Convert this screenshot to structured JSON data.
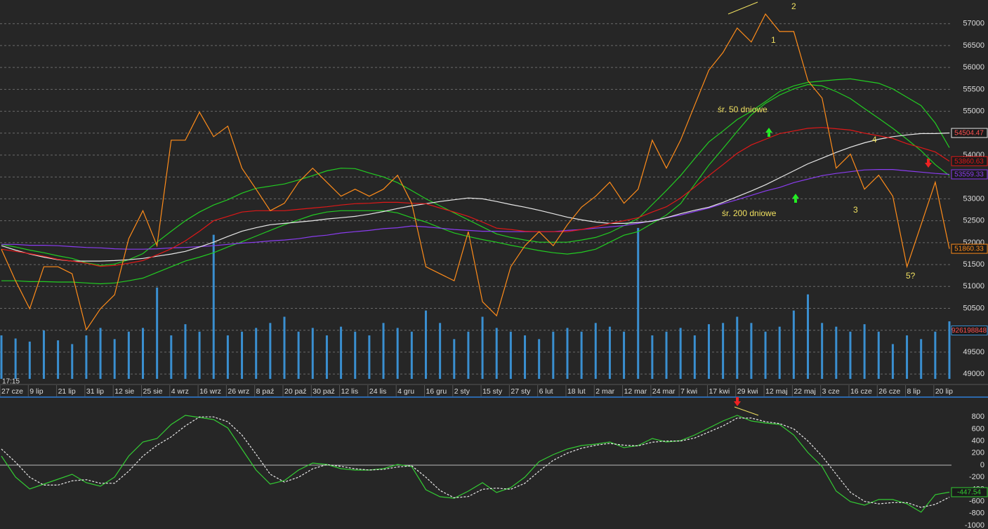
{
  "chart_data": [
    {
      "type": "line",
      "categories": [
        "27 cze",
        null,
        "9 lip",
        null,
        "21 lip",
        null,
        "31 lip",
        null,
        "12 sie",
        null,
        "25 sie",
        null,
        "4 wrz",
        null,
        "16 wrz",
        null,
        "26 wrz",
        null,
        "8 paź",
        null,
        "20 paź",
        null,
        "30 paź",
        null,
        "12 lis",
        null,
        "24 lis",
        null,
        "4 gru",
        null,
        "16 gru",
        null,
        "2 sty",
        null,
        "15 sty",
        null,
        "27 sty",
        null,
        "6 lut",
        null,
        "18 lut",
        null,
        "2 mar",
        null,
        "12 mar",
        null,
        "24 mar",
        null,
        "7 kwi",
        null,
        "17 kwi",
        null,
        "29 kwi",
        null,
        "12 maj",
        null,
        "22 maj",
        null,
        "3 cze",
        null,
        "16 cze",
        null,
        "26 cze",
        null,
        "8 lip",
        null,
        "20 lip",
        null
      ],
      "time_label": "17:15",
      "annotations": [
        "2",
        "1",
        "śr. 50 dniowe",
        "4",
        "3",
        "śr. 200 dniowe",
        "5?"
      ],
      "ylim": [
        48890,
        57540
      ],
      "yticks": [
        49000,
        49500,
        50000,
        50500,
        51000,
        51500,
        52000,
        52500,
        53000,
        53500,
        54000,
        54500,
        55000,
        55500,
        56000,
        56500,
        57000
      ],
      "y2lim": [
        0,
        6100000000
      ],
      "grid": true,
      "series": [
        {
          "type": "bar",
          "axis": "y2",
          "color": "#3a8fd0",
          "last_label": true,
          "values": [
            700000000,
            650000000,
            600000000,
            780000000,
            620000000,
            560000000,
            700000000,
            820000000,
            640000000,
            760000000,
            820000000,
            1470000000,
            700000000,
            880000000,
            760000000,
            2320000000,
            700000000,
            760000000,
            820000000,
            900000000,
            1000000000,
            760000000,
            820000000,
            700000000,
            840000000,
            760000000,
            700000000,
            900000000,
            820000000,
            760000000,
            1100000000,
            900000000,
            640000000,
            760000000,
            1000000000,
            820000000,
            760000000,
            700000000,
            640000000,
            760000000,
            820000000,
            760000000,
            900000000,
            840000000,
            760000000,
            2430000000,
            700000000,
            760000000,
            820000000,
            700000000,
            880000000,
            900000000,
            1000000000,
            900000000,
            760000000,
            840000000,
            1100000000,
            1360000000,
            900000000,
            840000000,
            760000000,
            880000000,
            760000000,
            560000000,
            700000000,
            640000000,
            760000000,
            926198848
          ]
        },
        {
          "color": "#22cc22",
          "values": [
            51130,
            51130,
            51110,
            51110,
            51100,
            51100,
            51080,
            51060,
            51080,
            51130,
            51190,
            51320,
            51450,
            51580,
            51670,
            51770,
            51900,
            52020,
            52150,
            52280,
            52410,
            52520,
            52630,
            52700,
            52730,
            52730,
            52730,
            52730,
            52680,
            52570,
            52470,
            52340,
            52220,
            52140,
            52070,
            52010,
            51940,
            51880,
            51820,
            51770,
            51740,
            51780,
            51850,
            52010,
            52170,
            52250,
            52440,
            52630,
            52890,
            53330,
            53770,
            54150,
            54540,
            54920,
            55180,
            55370,
            55510,
            55610,
            55580,
            55450,
            55290,
            55060,
            54840,
            54610,
            54360,
            54100,
            53780,
            53530
          ]
        },
        {
          "color": "#22cc22",
          "values": [
            51960,
            51900,
            51830,
            51770,
            51700,
            51640,
            51540,
            51480,
            51510,
            51610,
            51750,
            52010,
            52260,
            52500,
            52700,
            52860,
            52980,
            53130,
            53240,
            53290,
            53340,
            53430,
            53530,
            53640,
            53700,
            53690,
            53590,
            53500,
            53370,
            53190,
            53000,
            52840,
            52680,
            52520,
            52360,
            52200,
            52120,
            52060,
            52010,
            52010,
            52010,
            52060,
            52120,
            52230,
            52390,
            52550,
            52870,
            53190,
            53530,
            53920,
            54300,
            54550,
            54810,
            55000,
            55220,
            55450,
            55580,
            55660,
            55690,
            55720,
            55740,
            55690,
            55640,
            55510,
            55320,
            55130,
            54730,
            54170
          ]
        },
        {
          "color": "#8a3cf0",
          "last_label": true,
          "values": [
            51960,
            51960,
            51940,
            51940,
            51930,
            51910,
            51890,
            51880,
            51860,
            51850,
            51850,
            51860,
            51880,
            51890,
            51910,
            51930,
            51960,
            51990,
            52010,
            52040,
            52060,
            52090,
            52140,
            52170,
            52220,
            52250,
            52280,
            52320,
            52340,
            52380,
            52360,
            52330,
            52300,
            52280,
            52260,
            52260,
            52250,
            52250,
            52250,
            52250,
            52280,
            52300,
            52330,
            52360,
            52390,
            52440,
            52500,
            52570,
            52630,
            52710,
            52790,
            52890,
            52980,
            53080,
            53180,
            53260,
            53370,
            53450,
            53530,
            53580,
            53620,
            53660,
            53670,
            53670,
            53640,
            53610,
            53580,
            53559.33
          ]
        },
        {
          "color": "#e8e8e8",
          "last_label": true,
          "values": [
            51930,
            51830,
            51740,
            51670,
            51610,
            51580,
            51580,
            51580,
            51590,
            51610,
            51640,
            51690,
            51740,
            51800,
            51900,
            52010,
            52140,
            52260,
            52340,
            52410,
            52440,
            52470,
            52500,
            52540,
            52570,
            52600,
            52650,
            52710,
            52780,
            52840,
            52890,
            52940,
            52980,
            53020,
            53000,
            52940,
            52870,
            52810,
            52740,
            52660,
            52580,
            52520,
            52470,
            52440,
            52440,
            52460,
            52490,
            52570,
            52660,
            52740,
            52810,
            52920,
            53050,
            53180,
            53320,
            53480,
            53640,
            53800,
            53930,
            54060,
            54180,
            54280,
            54360,
            54420,
            54460,
            54490,
            54490,
            54504.47
          ]
        },
        {
          "color": "#e01818",
          "last_label": true,
          "values": [
            51850,
            51800,
            51750,
            51690,
            51620,
            51580,
            51530,
            51460,
            51480,
            51530,
            51590,
            51720,
            51860,
            52040,
            52260,
            52500,
            52600,
            52700,
            52730,
            52730,
            52730,
            52760,
            52790,
            52820,
            52860,
            52890,
            52900,
            52920,
            52920,
            52900,
            52890,
            52790,
            52700,
            52600,
            52470,
            52330,
            52300,
            52260,
            52250,
            52250,
            52250,
            52300,
            52360,
            52440,
            52500,
            52570,
            52700,
            52820,
            53020,
            53270,
            53530,
            53780,
            54040,
            54230,
            54360,
            54490,
            54550,
            54610,
            54630,
            54600,
            54570,
            54500,
            54440,
            54380,
            54260,
            54170,
            54070,
            53860.63
          ]
        },
        {
          "color": "#ff8c1a",
          "last_label": true,
          "values": [
            51850,
            51130,
            50490,
            51450,
            51450,
            51290,
            50010,
            50490,
            50810,
            52090,
            52730,
            51930,
            54340,
            54340,
            54980,
            54420,
            54660,
            53700,
            53220,
            52730,
            52900,
            53380,
            53700,
            53380,
            53060,
            53220,
            53060,
            53220,
            53540,
            52900,
            51450,
            51290,
            51130,
            52250,
            50650,
            50330,
            51450,
            51930,
            52250,
            51930,
            52410,
            52810,
            53060,
            53380,
            52900,
            53220,
            54340,
            53700,
            54340,
            55140,
            55940,
            56340,
            56900,
            56580,
            57220,
            56820,
            56820,
            55700,
            55300,
            53700,
            54020,
            53220,
            53540,
            53060,
            51450,
            52410,
            53380,
            51860.33
          ]
        }
      ]
    },
    {
      "type": "line",
      "ylim": [
        -1058,
        1128
      ],
      "yticks": [
        800,
        600,
        400,
        200,
        0,
        -200,
        -400,
        -600,
        -800,
        -1000
      ],
      "zero_line": true,
      "series": [
        {
          "color": "#33cc33",
          "last_label": true,
          "values": [
            151,
            -198,
            -395,
            -314,
            -233,
            -151,
            -291,
            -349,
            -198,
            151,
            384,
            442,
            674,
            826,
            791,
            756,
            616,
            267,
            -81,
            -314,
            -256,
            -81,
            35,
            12,
            -58,
            -81,
            -81,
            -58,
            12,
            -23,
            -407,
            -523,
            -547,
            -430,
            -291,
            -453,
            -372,
            -198,
            58,
            174,
            267,
            326,
            349,
            384,
            291,
            326,
            442,
            384,
            407,
            500,
            616,
            733,
            826,
            733,
            698,
            674,
            500,
            209,
            -23,
            -430,
            -605,
            -663,
            -570,
            -570,
            -640,
            -779,
            -488,
            -447.54
          ]
        },
        {
          "color": "#e8e8e8",
          "dashed": true,
          "values": [
            267,
            50,
            -200,
            -330,
            -330,
            -260,
            -240,
            -300,
            -300,
            -100,
            150,
            330,
            470,
            650,
            800,
            800,
            720,
            500,
            180,
            -150,
            -280,
            -200,
            -60,
            10,
            -20,
            -60,
            -80,
            -70,
            -30,
            -10,
            -200,
            -420,
            -540,
            -520,
            -400,
            -380,
            -400,
            -300,
            -100,
            80,
            200,
            280,
            330,
            360,
            330,
            320,
            380,
            400,
            400,
            450,
            550,
            650,
            780,
            780,
            720,
            690,
            600,
            400,
            150,
            -150,
            -450,
            -600,
            -640,
            -620,
            -620,
            -700,
            -650,
            -530
          ]
        }
      ]
    }
  ]
}
